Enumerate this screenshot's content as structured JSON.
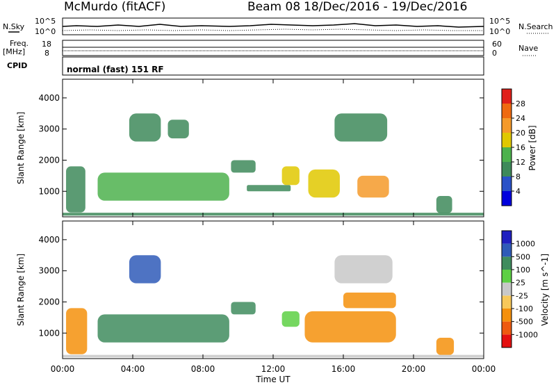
{
  "header": {
    "station": "McMurdo (fitACF)",
    "beam": "Beam 08",
    "date_range": "18/Dec/2016 - 19/Dec/2016"
  },
  "top_panels": {
    "nsky_label": "N.Sky",
    "nsearch_label": "N.Search",
    "noise_ticks_left": [
      "10^5",
      "10^0"
    ],
    "noise_ticks_right": [
      "10^5",
      "10^0"
    ],
    "freq_label": "Freq.",
    "freq_unit": "[MHz]",
    "freq_ticks": [
      "18",
      "8"
    ],
    "nave_label": "Nave",
    "nave_ticks": [
      "60",
      "0"
    ],
    "cpid_label": "CPID",
    "cpid_value": "normal (fast) 151 RF"
  },
  "colors": {
    "power_scale": [
      "#0000dd",
      "#2a52c8",
      "#3e8a5a",
      "#4db24d",
      "#e0c800",
      "#f59a2a",
      "#ef6a10",
      "#e0201a"
    ],
    "velocity_scale": [
      "#e41010",
      "#ee5a10",
      "#f5900c",
      "#f7c85a",
      "#c8c8c8",
      "#5dd044",
      "#3f8c5e",
      "#2f5bb8",
      "#2020c0"
    ]
  },
  "chart_data": [
    {
      "type": "heatmap",
      "ylabel": "Slant Range [km]",
      "yticks": [
        "4000",
        "3000",
        "2000",
        "1000"
      ],
      "ylim": [
        180,
        4600
      ],
      "x_range_hours": [
        0,
        24
      ],
      "colorbar": {
        "label": "Power [dB]",
        "ticks": [
          "28",
          "24",
          "20",
          "16",
          "12",
          "8",
          "4"
        ],
        "range": [
          0,
          32
        ]
      },
      "regions": [
        {
          "t0": 0.0,
          "t1": 24.0,
          "r0": 220,
          "r1": 310,
          "value": 9
        },
        {
          "t0": 0.2,
          "t1": 1.3,
          "r0": 320,
          "r1": 1800,
          "value": 8
        },
        {
          "t0": 2.0,
          "t1": 9.5,
          "r0": 700,
          "r1": 1600,
          "value": 14
        },
        {
          "t0": 3.8,
          "t1": 5.6,
          "r0": 2600,
          "r1": 3500,
          "value": 9
        },
        {
          "t0": 6.0,
          "t1": 7.2,
          "r0": 2700,
          "r1": 3300,
          "value": 9
        },
        {
          "t0": 9.6,
          "t1": 11.0,
          "r0": 1600,
          "r1": 2000,
          "value": 10
        },
        {
          "t0": 10.5,
          "t1": 13.0,
          "r0": 1000,
          "r1": 1200,
          "value": 8
        },
        {
          "t0": 12.5,
          "t1": 13.5,
          "r0": 1200,
          "r1": 1800,
          "value": 16
        },
        {
          "t0": 14.0,
          "t1": 15.8,
          "r0": 800,
          "r1": 1700,
          "value": 18
        },
        {
          "t0": 16.8,
          "t1": 18.6,
          "r0": 800,
          "r1": 1500,
          "value": 22
        },
        {
          "t0": 15.5,
          "t1": 18.5,
          "r0": 2600,
          "r1": 3500,
          "value": 10
        },
        {
          "t0": 21.3,
          "t1": 22.2,
          "r0": 300,
          "r1": 850,
          "value": 10
        }
      ]
    },
    {
      "type": "heatmap",
      "ylabel": "Slant Range [km]",
      "yticks": [
        "4000",
        "3000",
        "2000",
        "1000"
      ],
      "ylim": [
        180,
        4600
      ],
      "x_range_hours": [
        0,
        24
      ],
      "xlabel": "Time UT",
      "xticks": [
        "00:00",
        "04:00",
        "08:00",
        "12:00",
        "16:00",
        "20:00",
        "00:00"
      ],
      "colorbar": {
        "label": "Velocity [m s^-1]",
        "ticks": [
          "1000",
          "500",
          "100",
          "25",
          "-25",
          "-100",
          "-500",
          "-1000"
        ],
        "range": [
          -1000,
          1000
        ]
      },
      "regions": [
        {
          "t0": 0.0,
          "t1": 24.0,
          "r0": 220,
          "r1": 300,
          "value": 5
        },
        {
          "t0": 0.2,
          "t1": 1.4,
          "r0": 320,
          "r1": 1800,
          "value": -300
        },
        {
          "t0": 2.0,
          "t1": 9.5,
          "r0": 700,
          "r1": 1600,
          "value": 300
        },
        {
          "t0": 3.8,
          "t1": 5.6,
          "r0": 2600,
          "r1": 3500,
          "value": 700
        },
        {
          "t0": 9.6,
          "t1": 11.0,
          "r0": 1600,
          "r1": 2000,
          "value": 300
        },
        {
          "t0": 12.5,
          "t1": 13.5,
          "r0": 1200,
          "r1": 1700,
          "value": 80
        },
        {
          "t0": 13.8,
          "t1": 19.0,
          "r0": 700,
          "r1": 1700,
          "value": -200
        },
        {
          "t0": 16.0,
          "t1": 19.0,
          "r0": 1800,
          "r1": 2300,
          "value": -150
        },
        {
          "t0": 15.5,
          "t1": 18.8,
          "r0": 2600,
          "r1": 3500,
          "value": 5
        },
        {
          "t0": 21.3,
          "t1": 22.3,
          "r0": 300,
          "r1": 850,
          "value": -200
        }
      ]
    }
  ]
}
